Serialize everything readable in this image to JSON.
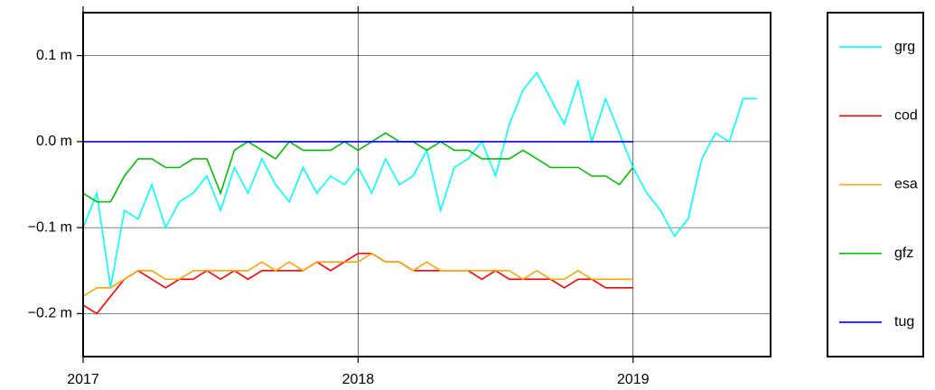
{
  "chart_data": {
    "type": "line",
    "x": [
      2017.0,
      2017.05,
      2017.1,
      2017.15,
      2017.2,
      2017.25,
      2017.3,
      2017.35,
      2017.4,
      2017.45,
      2017.5,
      2017.55,
      2017.6,
      2017.65,
      2017.7,
      2017.75,
      2017.8,
      2017.85,
      2017.9,
      2017.95,
      2018.0,
      2018.05,
      2018.1,
      2018.15,
      2018.2,
      2018.25,
      2018.3,
      2018.35,
      2018.4,
      2018.45,
      2018.5,
      2018.55,
      2018.6,
      2018.65,
      2018.7,
      2018.75,
      2018.8,
      2018.85,
      2018.9,
      2018.95,
      2019.0,
      2019.05,
      2019.1,
      2019.15,
      2019.2,
      2019.25,
      2019.3,
      2019.35,
      2019.4,
      2019.45
    ],
    "series": [
      {
        "name": "grg",
        "color": "#00ffff",
        "values": [
          -0.1,
          -0.06,
          -0.17,
          -0.08,
          -0.09,
          -0.05,
          -0.1,
          -0.07,
          -0.06,
          -0.04,
          -0.08,
          -0.03,
          -0.06,
          -0.02,
          -0.05,
          -0.07,
          -0.03,
          -0.06,
          -0.04,
          -0.05,
          -0.03,
          -0.06,
          -0.02,
          -0.05,
          -0.04,
          -0.01,
          -0.08,
          -0.03,
          -0.02,
          0.0,
          -0.04,
          0.02,
          0.06,
          0.08,
          0.05,
          0.02,
          0.07,
          0.0,
          0.05,
          0.01,
          -0.03,
          -0.06,
          -0.08,
          -0.11,
          -0.09,
          -0.02,
          0.01,
          0.0,
          0.05,
          0.05
        ]
      },
      {
        "name": "cod",
        "color": "#ff0000",
        "values": [
          -0.19,
          -0.2,
          -0.18,
          -0.16,
          -0.15,
          -0.16,
          -0.17,
          -0.16,
          -0.16,
          -0.15,
          -0.16,
          -0.15,
          -0.16,
          -0.15,
          -0.15,
          -0.15,
          -0.15,
          -0.14,
          -0.15,
          -0.14,
          -0.13,
          -0.13,
          -0.14,
          -0.14,
          -0.15,
          -0.15,
          -0.15,
          -0.15,
          -0.15,
          -0.16,
          -0.15,
          -0.16,
          -0.16,
          -0.16,
          -0.16,
          -0.17,
          -0.16,
          -0.16,
          -0.17,
          -0.17,
          -0.17,
          null,
          null,
          null,
          null,
          null,
          null,
          null,
          null,
          null
        ]
      },
      {
        "name": "esa",
        "color": "#ffa500",
        "values": [
          -0.18,
          -0.17,
          -0.17,
          -0.16,
          -0.15,
          -0.15,
          -0.16,
          -0.16,
          -0.15,
          -0.15,
          -0.15,
          -0.15,
          -0.15,
          -0.14,
          -0.15,
          -0.14,
          -0.15,
          -0.14,
          -0.14,
          -0.14,
          -0.14,
          -0.13,
          -0.14,
          -0.14,
          -0.15,
          -0.14,
          -0.15,
          -0.15,
          -0.15,
          -0.15,
          -0.15,
          -0.15,
          -0.16,
          -0.15,
          -0.16,
          -0.16,
          -0.15,
          -0.16,
          -0.16,
          -0.16,
          -0.16,
          null,
          null,
          null,
          null,
          null,
          null,
          null,
          null,
          null
        ]
      },
      {
        "name": "gfz",
        "color": "#00c000",
        "values": [
          -0.06,
          -0.07,
          -0.07,
          -0.04,
          -0.02,
          -0.02,
          -0.03,
          -0.03,
          -0.02,
          -0.02,
          -0.06,
          -0.01,
          0.0,
          -0.01,
          -0.02,
          0.0,
          -0.01,
          -0.01,
          -0.01,
          0.0,
          -0.01,
          0.0,
          0.01,
          0.0,
          0.0,
          -0.01,
          0.0,
          -0.01,
          -0.01,
          -0.02,
          -0.02,
          -0.02,
          -0.01,
          -0.02,
          -0.03,
          -0.03,
          -0.03,
          -0.04,
          -0.04,
          -0.05,
          -0.03,
          null,
          null,
          null,
          null,
          null,
          null,
          null,
          null,
          null
        ]
      },
      {
        "name": "tug",
        "color": "#0000ff",
        "values": [
          0,
          0,
          0,
          0,
          0,
          0,
          0,
          0,
          0,
          0,
          0,
          0,
          0,
          0,
          0,
          0,
          0,
          0,
          0,
          0,
          0,
          0,
          0,
          0,
          0,
          0,
          0,
          0,
          0,
          0,
          0,
          0,
          0,
          0,
          0,
          0,
          0,
          0,
          0,
          0,
          0,
          null,
          null,
          null,
          null,
          null,
          null,
          null,
          null,
          null
        ]
      }
    ],
    "xlim": [
      2017,
      2019.5
    ],
    "xticks": [
      2017,
      2018,
      2019
    ],
    "ylim": [
      -0.25,
      0.15
    ],
    "yticks": [
      {
        "value": 0.1,
        "label": "0.1 m"
      },
      {
        "value": 0.0,
        "label": "0.0 m"
      },
      {
        "value": -0.1,
        "label": "−0.1 m"
      },
      {
        "value": -0.2,
        "label": "−0.2 m"
      }
    ],
    "grid": true,
    "legend": "right"
  }
}
